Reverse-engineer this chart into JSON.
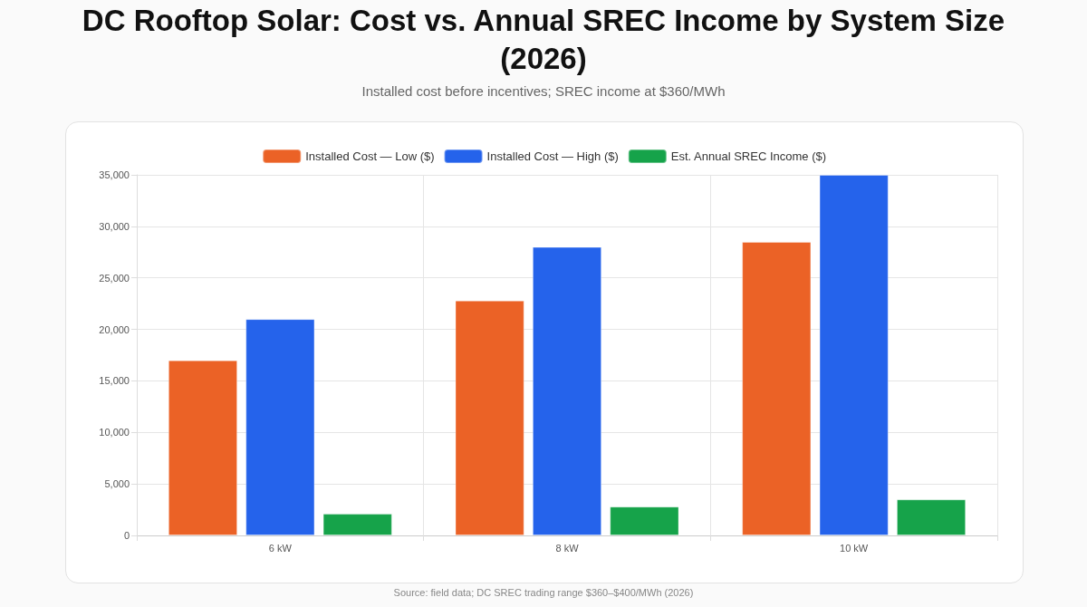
{
  "chart_data": {
    "type": "bar",
    "title": "DC Rooftop Solar: Cost vs. Annual SREC Income by System Size (2026)",
    "subtitle": "Installed cost before incentives; SREC income at $360/MWh",
    "categories": [
      "6 kW",
      "8 kW",
      "10 kW"
    ],
    "series": [
      {
        "name": "Installed Cost — Low ($)",
        "color": "#eb6226",
        "values": [
          17000,
          22800,
          28500
        ]
      },
      {
        "name": "Installed Cost — High ($)",
        "color": "#2563eb",
        "values": [
          21000,
          28000,
          35000
        ]
      },
      {
        "name": "Est. Annual SREC Income ($)",
        "color": "#16a34a",
        "values": [
          2100,
          2800,
          3500
        ]
      }
    ],
    "ylim": [
      0,
      35000
    ],
    "yticks": [
      0,
      {
        "value": 5000,
        "label": "5,000"
      },
      {
        "value": 10000,
        "label": "10,000"
      },
      {
        "value": 15000,
        "label": "15,000"
      },
      {
        "value": 20000,
        "label": "20,000"
      },
      {
        "value": 25000,
        "label": "25,000"
      },
      {
        "value": 30000,
        "label": "30,000"
      },
      {
        "value": 35000,
        "label": "35,000"
      }
    ],
    "grid": true,
    "legend": "top",
    "annotations": [
      "Source: field data; DC SREC trading range $360–$400/MWh (2026)"
    ]
  }
}
